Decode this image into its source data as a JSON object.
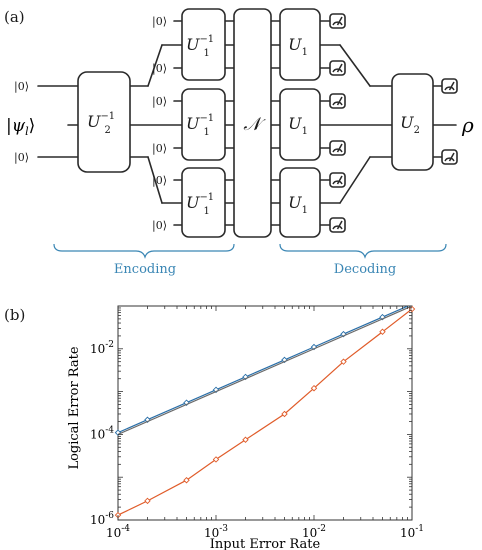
{
  "panel_a": {
    "label": "(a)",
    "input_state": "|ψ",
    "input_state_sub": "l",
    "ket_zero": "|0⟩",
    "gates": {
      "u2_inverse": {
        "base": "U",
        "sub": "2",
        "sup": "−1"
      },
      "u1_inverse": {
        "base": "U",
        "sub": "1",
        "sup": "−1"
      },
      "noise_channel": "𝒩",
      "u1": {
        "base": "U",
        "sub": "1"
      },
      "u2": {
        "base": "U",
        "sub": "2"
      }
    },
    "output_state": "ρ",
    "encoding_label": "Encoding",
    "decoding_label": "Decoding",
    "brace_color": "#3a86b4"
  },
  "panel_b": {
    "label": "(b)"
  },
  "chart_data": {
    "type": "line",
    "xlabel": "Input Error Rate",
    "ylabel": "Logical Error Rate",
    "x_scale": "log",
    "y_scale": "log",
    "xlim": [
      0.0001,
      0.1
    ],
    "ylim": [
      1e-06,
      0.1
    ],
    "x_ticks": [
      {
        "value": 0.0001,
        "base": "10",
        "exp": "-4"
      },
      {
        "value": 0.001,
        "base": "10",
        "exp": "-3"
      },
      {
        "value": 0.01,
        "base": "10",
        "exp": "-2"
      },
      {
        "value": 0.1,
        "base": "10",
        "exp": "-1"
      }
    ],
    "y_ticks": [
      {
        "value": 1e-06,
        "base": "10",
        "exp": "-6"
      },
      {
        "value": 0.0001,
        "base": "10",
        "exp": "-4"
      },
      {
        "value": 0.01,
        "base": "10",
        "exp": "-2"
      }
    ],
    "grid": false,
    "legend": false,
    "series": [
      {
        "color": "#2a6fa8",
        "marker": "diamond",
        "x": [
          0.0001,
          0.0002,
          0.0005,
          0.001,
          0.002,
          0.005,
          0.01,
          0.02,
          0.05,
          0.1
        ],
        "y": [
          0.00011,
          0.00022,
          0.00055,
          0.0011,
          0.0022,
          0.0055,
          0.011,
          0.022,
          0.055,
          0.11
        ]
      },
      {
        "color": "#e05c2a",
        "marker": "diamond",
        "x": [
          0.0001,
          0.0002,
          0.0005,
          0.001,
          0.002,
          0.005,
          0.01,
          0.02,
          0.05,
          0.1
        ],
        "y": [
          1.3e-06,
          2.8e-06,
          8.5e-06,
          2.6e-05,
          7.5e-05,
          0.0003,
          0.0012,
          0.005,
          0.025,
          0.085
        ]
      },
      {
        "color": "#6a6a6a",
        "marker": "none",
        "x": [
          0.0001,
          0.1
        ],
        "y": [
          0.0001,
          0.1
        ]
      }
    ]
  }
}
